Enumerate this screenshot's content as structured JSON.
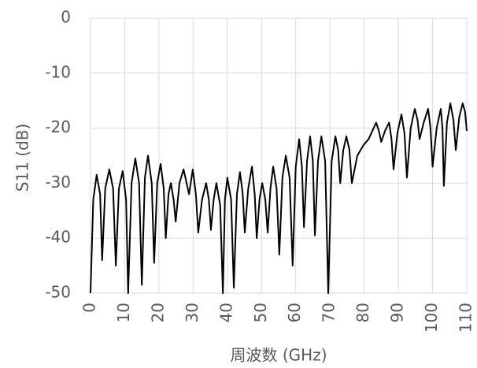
{
  "chart_data": {
    "type": "line",
    "y_label": "S11 (dB)",
    "x_label": "周波数 (GHz)",
    "x": [
      0,
      0.8,
      1.8,
      2.8,
      3.4,
      4.3,
      5.5,
      6.6,
      7.4,
      8.3,
      9.4,
      10.4,
      11,
      12,
      13.1,
      14.2,
      15,
      15.9,
      16.8,
      17.9,
      18.6,
      19.5,
      20.5,
      21.4,
      22,
      22.8,
      23.5,
      24.3,
      24.9,
      26,
      27.2,
      28.8,
      29.9,
      30.8,
      31.5,
      32.6,
      33.8,
      34.6,
      35.2,
      36,
      36.8,
      37.9,
      38.7,
      39.3,
      40,
      41.1,
      41.9,
      42.8,
      43.7,
      44.5,
      45.1,
      46.1,
      47.2,
      48,
      48.6,
      49.4,
      50.2,
      51.1,
      51.8,
      52.6,
      53.4,
      54.4,
      55.2,
      56.1,
      57.1,
      58.2,
      59.1,
      60,
      61,
      61.8,
      62.4,
      63.3,
      64.2,
      65,
      65.6,
      66.5,
      67.5,
      68.6,
      69.5,
      70.5,
      71.6,
      72.4,
      73,
      73.9,
      74.8,
      75.7,
      76.4,
      78,
      79.9,
      81.3,
      82.4,
      83.5,
      84.3,
      85,
      86.1,
      87.3,
      88,
      88.6,
      89.7,
      90.9,
      91.8,
      92.5,
      93.6,
      94.8,
      95.6,
      96.2,
      97.4,
      98.7,
      99.4,
      100,
      101.2,
      102.4,
      102.9,
      103.3,
      104.2,
      105.2,
      106.1,
      106.8,
      107.8,
      108.8,
      109.5,
      110
    ],
    "values": [
      -50,
      -33,
      -28.5,
      -32,
      -44,
      -31,
      -27.5,
      -31,
      -45,
      -31,
      -27.8,
      -33,
      -50,
      -30,
      -25.5,
      -30,
      -48.5,
      -29,
      -25,
      -30,
      -44.5,
      -30,
      -26.5,
      -31,
      -40,
      -32,
      -30,
      -33,
      -37,
      -30,
      -27.5,
      -32,
      -27.5,
      -32,
      -39,
      -33,
      -30,
      -33,
      -38.5,
      -33,
      -30,
      -34,
      -50,
      -33,
      -29,
      -33,
      -49,
      -32,
      -28,
      -32,
      -39,
      -31,
      -27,
      -32,
      -40,
      -33,
      -30,
      -33,
      -39,
      -31,
      -27,
      -31,
      -43,
      -29,
      -25,
      -29,
      -45,
      -27,
      -22,
      -27,
      -38,
      -26,
      -21.5,
      -26,
      -39.5,
      -26,
      -21.5,
      -26,
      -50,
      -26,
      -21.5,
      -24,
      -30,
      -24,
      -21.5,
      -24,
      -30,
      -25,
      -23,
      -22,
      -20.5,
      -19,
      -20.5,
      -22.5,
      -20.5,
      -19,
      -22,
      -27.5,
      -21,
      -17.5,
      -21,
      -29,
      -20,
      -16.5,
      -18.5,
      -22,
      -19,
      -16.5,
      -20,
      -27,
      -20,
      -16.5,
      -20,
      -30.5,
      -19,
      -15.5,
      -18.5,
      -24,
      -18,
      -15.5,
      -17,
      -20.5
    ],
    "color": "#000000",
    "xlim": [
      0,
      110
    ],
    "xticks": [
      0,
      10,
      20,
      30,
      40,
      50,
      60,
      70,
      80,
      90,
      100,
      110
    ],
    "ylim": [
      -50,
      0
    ],
    "yticks": [
      0,
      -10,
      -20,
      -30,
      -40,
      -50
    ],
    "grid": true
  }
}
